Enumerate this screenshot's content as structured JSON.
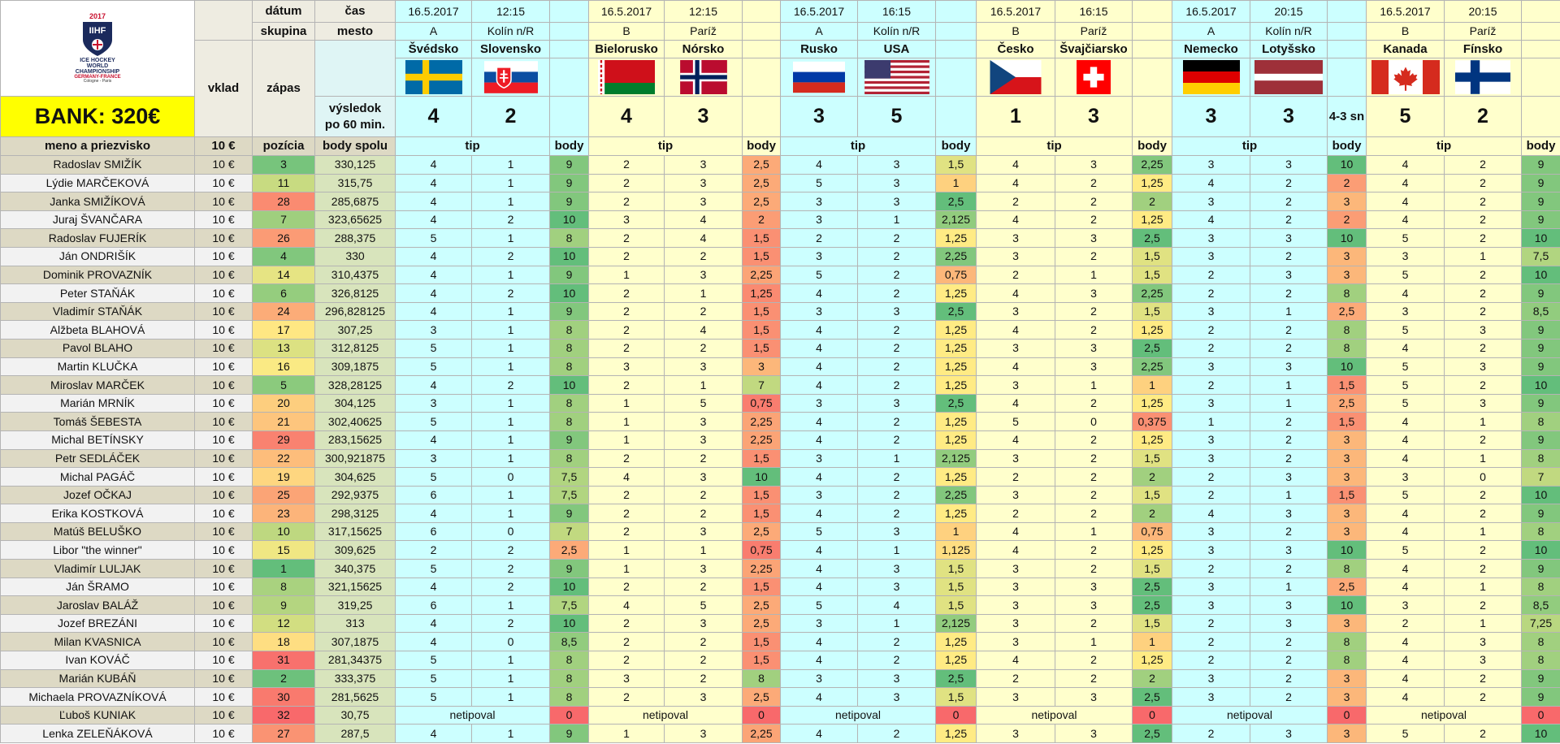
{
  "logo": {
    "year": "2017",
    "org": "IIHF",
    "lines": [
      "ICE HOCKEY",
      "WORLD",
      "CHAMPIONSHIP"
    ],
    "hosts": "GERMANY-FRANCE",
    "cities": "Cologne - Paris"
  },
  "bank": "BANK: 320€",
  "header": {
    "datum": "dátum",
    "cas": "čas",
    "skupina": "skupina",
    "mesto": "mesto",
    "vklad": "vklad",
    "zapas": "zápas",
    "vysledok": [
      "výsledok",
      "po 60 min."
    ]
  },
  "columns": {
    "name": "meno a priezvisko",
    "vklad": "10 €",
    "pozicia": "pozícia",
    "body_spolu": "body spolu",
    "tip": "tip",
    "body": "body"
  },
  "matches": [
    {
      "date": "16.5.2017",
      "time": "12:15",
      "group": "A",
      "city": "Kolín n/R",
      "home": "Švédsko",
      "away": "Slovensko",
      "score": [
        "4",
        "2"
      ]
    },
    {
      "date": "16.5.2017",
      "time": "12:15",
      "group": "B",
      "city": "Paríž",
      "home": "Bielorusko",
      "away": "Nórsko",
      "score": [
        "4",
        "3"
      ]
    },
    {
      "date": "16.5.2017",
      "time": "16:15",
      "group": "A",
      "city": "Kolín n/R",
      "home": "Rusko",
      "away": "USA",
      "score": [
        "3",
        "5"
      ]
    },
    {
      "date": "16.5.2017",
      "time": "16:15",
      "group": "B",
      "city": "Paríž",
      "home": "Česko",
      "away": "Švajčiarsko",
      "score": [
        "1",
        "3"
      ]
    },
    {
      "date": "16.5.2017",
      "time": "20:15",
      "group": "A",
      "city": "Kolín n/R",
      "home": "Nemecko",
      "away": "Lotyšsko",
      "score": [
        "3",
        "3"
      ],
      "note": "4-3 sn"
    },
    {
      "date": "16.5.2017",
      "time": "20:15",
      "group": "B",
      "city": "Paríž",
      "home": "Kanada",
      "away": "Fínsko",
      "score": [
        "5",
        "2"
      ]
    }
  ],
  "players": [
    [
      "Radoslav SMIŽÍK",
      "10 €",
      "3",
      "330,125",
      [
        "4",
        "1",
        "9"
      ],
      [
        "2",
        "3",
        "2,5"
      ],
      [
        "4",
        "3",
        "1,5"
      ],
      [
        "4",
        "3",
        "2,25"
      ],
      [
        "3",
        "3",
        "10"
      ],
      [
        "4",
        "2",
        "9"
      ]
    ],
    [
      "Lýdie MARČEKOVÁ",
      "10 €",
      "11",
      "315,75",
      [
        "4",
        "1",
        "9"
      ],
      [
        "2",
        "3",
        "2,5"
      ],
      [
        "5",
        "3",
        "1"
      ],
      [
        "4",
        "2",
        "1,25"
      ],
      [
        "4",
        "2",
        "2"
      ],
      [
        "4",
        "2",
        "9"
      ]
    ],
    [
      "Janka SMIŽÍKOVÁ",
      "10 €",
      "28",
      "285,6875",
      [
        "4",
        "1",
        "9"
      ],
      [
        "2",
        "3",
        "2,5"
      ],
      [
        "3",
        "3",
        "2,5"
      ],
      [
        "2",
        "2",
        "2"
      ],
      [
        "3",
        "2",
        "3"
      ],
      [
        "4",
        "2",
        "9"
      ]
    ],
    [
      "Juraj ŠVANČARA",
      "10 €",
      "7",
      "323,65625",
      [
        "4",
        "2",
        "10"
      ],
      [
        "3",
        "4",
        "2"
      ],
      [
        "3",
        "1",
        "2,125"
      ],
      [
        "4",
        "2",
        "1,25"
      ],
      [
        "4",
        "2",
        "2"
      ],
      [
        "4",
        "2",
        "9"
      ]
    ],
    [
      "Radoslav FUJERÍK",
      "10 €",
      "26",
      "288,375",
      [
        "5",
        "1",
        "8"
      ],
      [
        "2",
        "4",
        "1,5"
      ],
      [
        "2",
        "2",
        "1,25"
      ],
      [
        "3",
        "3",
        "2,5"
      ],
      [
        "3",
        "3",
        "10"
      ],
      [
        "5",
        "2",
        "10"
      ]
    ],
    [
      "Ján ONDRIŠÍK",
      "10 €",
      "4",
      "330",
      [
        "4",
        "2",
        "10"
      ],
      [
        "2",
        "2",
        "1,5"
      ],
      [
        "3",
        "2",
        "2,25"
      ],
      [
        "3",
        "2",
        "1,5"
      ],
      [
        "3",
        "2",
        "3"
      ],
      [
        "3",
        "1",
        "7,5"
      ]
    ],
    [
      "Dominik PROVAZNÍK",
      "10 €",
      "14",
      "310,4375",
      [
        "4",
        "1",
        "9"
      ],
      [
        "1",
        "3",
        "2,25"
      ],
      [
        "5",
        "2",
        "0,75"
      ],
      [
        "2",
        "1",
        "1,5"
      ],
      [
        "2",
        "3",
        "3"
      ],
      [
        "5",
        "2",
        "10"
      ]
    ],
    [
      "Peter STAŇÁK",
      "10 €",
      "6",
      "326,8125",
      [
        "4",
        "2",
        "10"
      ],
      [
        "2",
        "1",
        "1,25"
      ],
      [
        "4",
        "2",
        "1,25"
      ],
      [
        "4",
        "3",
        "2,25"
      ],
      [
        "2",
        "2",
        "8"
      ],
      [
        "4",
        "2",
        "9"
      ]
    ],
    [
      "Vladimír STAŇÁK",
      "10 €",
      "24",
      "296,828125",
      [
        "4",
        "1",
        "9"
      ],
      [
        "2",
        "2",
        "1,5"
      ],
      [
        "3",
        "3",
        "2,5"
      ],
      [
        "3",
        "2",
        "1,5"
      ],
      [
        "3",
        "1",
        "2,5"
      ],
      [
        "3",
        "2",
        "8,5"
      ]
    ],
    [
      "Alžbeta BLAHOVÁ",
      "10 €",
      "17",
      "307,25",
      [
        "3",
        "1",
        "8"
      ],
      [
        "2",
        "4",
        "1,5"
      ],
      [
        "4",
        "2",
        "1,25"
      ],
      [
        "4",
        "2",
        "1,25"
      ],
      [
        "2",
        "2",
        "8"
      ],
      [
        "5",
        "3",
        "9"
      ]
    ],
    [
      "Pavol BLAHO",
      "10 €",
      "13",
      "312,8125",
      [
        "5",
        "1",
        "8"
      ],
      [
        "2",
        "2",
        "1,5"
      ],
      [
        "4",
        "2",
        "1,25"
      ],
      [
        "3",
        "3",
        "2,5"
      ],
      [
        "2",
        "2",
        "8"
      ],
      [
        "4",
        "2",
        "9"
      ]
    ],
    [
      "Martin KLUČKA",
      "10 €",
      "16",
      "309,1875",
      [
        "5",
        "1",
        "8"
      ],
      [
        "3",
        "3",
        "3"
      ],
      [
        "4",
        "2",
        "1,25"
      ],
      [
        "4",
        "3",
        "2,25"
      ],
      [
        "3",
        "3",
        "10"
      ],
      [
        "5",
        "3",
        "9"
      ]
    ],
    [
      "Miroslav MARČEK",
      "10 €",
      "5",
      "328,28125",
      [
        "4",
        "2",
        "10"
      ],
      [
        "2",
        "1",
        "7"
      ],
      [
        "4",
        "2",
        "1,25"
      ],
      [
        "3",
        "1",
        "1"
      ],
      [
        "2",
        "1",
        "1,5"
      ],
      [
        "5",
        "2",
        "10"
      ]
    ],
    [
      "Marián MRNÍK",
      "10 €",
      "20",
      "304,125",
      [
        "3",
        "1",
        "8"
      ],
      [
        "1",
        "5",
        "0,75"
      ],
      [
        "3",
        "3",
        "2,5"
      ],
      [
        "4",
        "2",
        "1,25"
      ],
      [
        "3",
        "1",
        "2,5"
      ],
      [
        "5",
        "3",
        "9"
      ]
    ],
    [
      "Tomáš ŠEBESTA",
      "10 €",
      "21",
      "302,40625",
      [
        "5",
        "1",
        "8"
      ],
      [
        "1",
        "3",
        "2,25"
      ],
      [
        "4",
        "2",
        "1,25"
      ],
      [
        "5",
        "0",
        "0,375"
      ],
      [
        "1",
        "2",
        "1,5"
      ],
      [
        "4",
        "1",
        "8"
      ]
    ],
    [
      "Michal BETÍNSKY",
      "10 €",
      "29",
      "283,15625",
      [
        "4",
        "1",
        "9"
      ],
      [
        "1",
        "3",
        "2,25"
      ],
      [
        "4",
        "2",
        "1,25"
      ],
      [
        "4",
        "2",
        "1,25"
      ],
      [
        "3",
        "2",
        "3"
      ],
      [
        "4",
        "2",
        "9"
      ]
    ],
    [
      "Petr SEDLÁČEK",
      "10 €",
      "22",
      "300,921875",
      [
        "3",
        "1",
        "8"
      ],
      [
        "2",
        "2",
        "1,5"
      ],
      [
        "3",
        "1",
        "2,125"
      ],
      [
        "3",
        "2",
        "1,5"
      ],
      [
        "3",
        "2",
        "3"
      ],
      [
        "4",
        "1",
        "8"
      ]
    ],
    [
      "Michal PAGÁČ",
      "10 €",
      "19",
      "304,625",
      [
        "5",
        "0",
        "7,5"
      ],
      [
        "4",
        "3",
        "10"
      ],
      [
        "4",
        "2",
        "1,25"
      ],
      [
        "2",
        "2",
        "2"
      ],
      [
        "2",
        "3",
        "3"
      ],
      [
        "3",
        "0",
        "7"
      ]
    ],
    [
      "Jozef OČKAJ",
      "10 €",
      "25",
      "292,9375",
      [
        "6",
        "1",
        "7,5"
      ],
      [
        "2",
        "2",
        "1,5"
      ],
      [
        "3",
        "2",
        "2,25"
      ],
      [
        "3",
        "2",
        "1,5"
      ],
      [
        "2",
        "1",
        "1,5"
      ],
      [
        "5",
        "2",
        "10"
      ]
    ],
    [
      "Erika KOSTKOVÁ",
      "10 €",
      "23",
      "298,3125",
      [
        "4",
        "1",
        "9"
      ],
      [
        "2",
        "2",
        "1,5"
      ],
      [
        "4",
        "2",
        "1,25"
      ],
      [
        "2",
        "2",
        "2"
      ],
      [
        "4",
        "3",
        "3"
      ],
      [
        "4",
        "2",
        "9"
      ]
    ],
    [
      "Matúš BELUŠKO",
      "10 €",
      "10",
      "317,15625",
      [
        "6",
        "0",
        "7"
      ],
      [
        "2",
        "3",
        "2,5"
      ],
      [
        "5",
        "3",
        "1"
      ],
      [
        "4",
        "1",
        "0,75"
      ],
      [
        "3",
        "2",
        "3"
      ],
      [
        "4",
        "1",
        "8"
      ]
    ],
    [
      "Libor \"the winner\"",
      "10 €",
      "15",
      "309,625",
      [
        "2",
        "2",
        "2,5"
      ],
      [
        "1",
        "1",
        "0,75"
      ],
      [
        "4",
        "1",
        "1,125"
      ],
      [
        "4",
        "2",
        "1,25"
      ],
      [
        "3",
        "3",
        "10"
      ],
      [
        "5",
        "2",
        "10"
      ]
    ],
    [
      "Vladimír LULJAK",
      "10 €",
      "1",
      "340,375",
      [
        "5",
        "2",
        "9"
      ],
      [
        "1",
        "3",
        "2,25"
      ],
      [
        "4",
        "3",
        "1,5"
      ],
      [
        "3",
        "2",
        "1,5"
      ],
      [
        "2",
        "2",
        "8"
      ],
      [
        "4",
        "2",
        "9"
      ]
    ],
    [
      "Ján ŠRAMO",
      "10 €",
      "8",
      "321,15625",
      [
        "4",
        "2",
        "10"
      ],
      [
        "2",
        "2",
        "1,5"
      ],
      [
        "4",
        "3",
        "1,5"
      ],
      [
        "3",
        "3",
        "2,5"
      ],
      [
        "3",
        "1",
        "2,5"
      ],
      [
        "4",
        "1",
        "8"
      ]
    ],
    [
      "Jaroslav BALÁŽ",
      "10 €",
      "9",
      "319,25",
      [
        "6",
        "1",
        "7,5"
      ],
      [
        "4",
        "5",
        "2,5"
      ],
      [
        "5",
        "4",
        "1,5"
      ],
      [
        "3",
        "3",
        "2,5"
      ],
      [
        "3",
        "3",
        "10"
      ],
      [
        "3",
        "2",
        "8,5"
      ]
    ],
    [
      "Jozef BREZÁNI",
      "10 €",
      "12",
      "313",
      [
        "4",
        "2",
        "10"
      ],
      [
        "2",
        "3",
        "2,5"
      ],
      [
        "3",
        "1",
        "2,125"
      ],
      [
        "3",
        "2",
        "1,5"
      ],
      [
        "2",
        "3",
        "3"
      ],
      [
        "2",
        "1",
        "7,25"
      ]
    ],
    [
      "Milan KVASNICA",
      "10 €",
      "18",
      "307,1875",
      [
        "4",
        "0",
        "8,5"
      ],
      [
        "2",
        "2",
        "1,5"
      ],
      [
        "4",
        "2",
        "1,25"
      ],
      [
        "3",
        "1",
        "1"
      ],
      [
        "2",
        "2",
        "8"
      ],
      [
        "4",
        "3",
        "8"
      ]
    ],
    [
      "Ivan KOVÁČ",
      "10 €",
      "31",
      "281,34375",
      [
        "5",
        "1",
        "8"
      ],
      [
        "2",
        "2",
        "1,5"
      ],
      [
        "4",
        "2",
        "1,25"
      ],
      [
        "4",
        "2",
        "1,25"
      ],
      [
        "2",
        "2",
        "8"
      ],
      [
        "4",
        "3",
        "8"
      ]
    ],
    [
      "Marián KUBÁŇ",
      "10 €",
      "2",
      "333,375",
      [
        "5",
        "1",
        "8"
      ],
      [
        "3",
        "2",
        "8"
      ],
      [
        "3",
        "3",
        "2,5"
      ],
      [
        "2",
        "2",
        "2"
      ],
      [
        "3",
        "2",
        "3"
      ],
      [
        "4",
        "2",
        "9"
      ]
    ],
    [
      "Michaela PROVAZNÍKOVÁ",
      "10 €",
      "30",
      "281,5625",
      [
        "5",
        "1",
        "8"
      ],
      [
        "2",
        "3",
        "2,5"
      ],
      [
        "4",
        "3",
        "1,5"
      ],
      [
        "3",
        "3",
        "2,5"
      ],
      [
        "3",
        "2",
        "3"
      ],
      [
        "4",
        "2",
        "9"
      ]
    ],
    [
      "Ľuboš KUNIAK",
      "10 €",
      "32",
      "30,75",
      [
        "netipoval",
        "0"
      ],
      [
        "netipoval",
        "0"
      ],
      [
        "netipoval",
        "0"
      ],
      [
        "netipoval",
        "0"
      ],
      [
        "netipoval",
        "0"
      ],
      [
        "netipoval",
        "0"
      ]
    ],
    [
      "Lenka ZELEŇÁKOVÁ",
      "10 €",
      "27",
      "287,5",
      [
        "4",
        "1",
        "9"
      ],
      [
        "1",
        "3",
        "2,25"
      ],
      [
        "4",
        "2",
        "1,25"
      ],
      [
        "3",
        "3",
        "2,5"
      ],
      [
        "2",
        "3",
        "3"
      ],
      [
        "5",
        "2",
        "10"
      ]
    ]
  ]
}
